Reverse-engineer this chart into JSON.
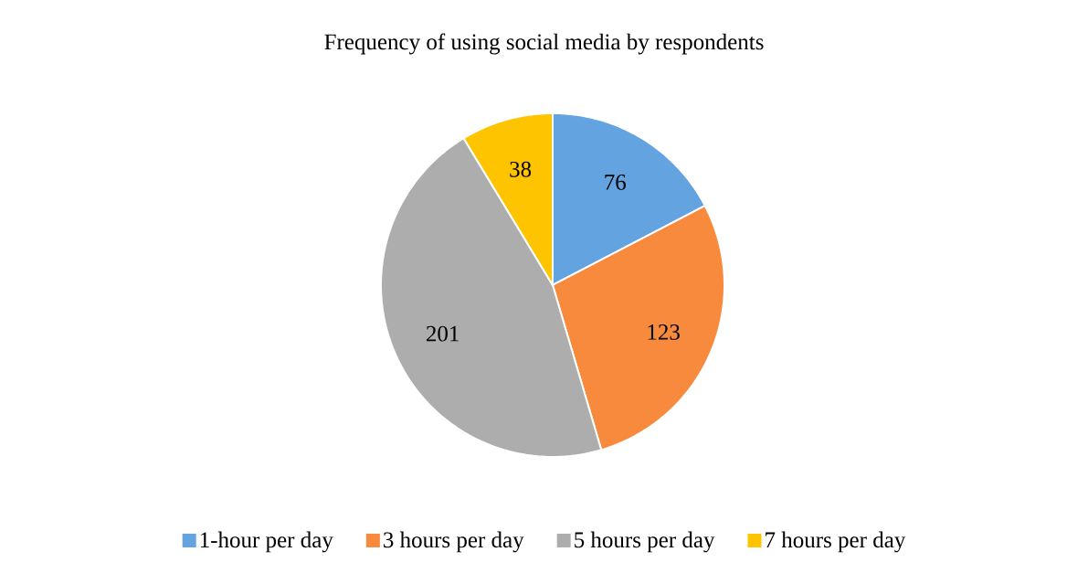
{
  "chart_data": {
    "type": "pie",
    "title": "Frequency of using social media by respondents",
    "categories": [
      "1-hour per day",
      "3 hours per day",
      "5 hours per day",
      "7 hours per day"
    ],
    "values": [
      76,
      123,
      201,
      38
    ],
    "colors": [
      "#62a3e0",
      "#f78a3c",
      "#adadad",
      "#ffc400"
    ],
    "data_labels": true,
    "legend": "bottom"
  }
}
